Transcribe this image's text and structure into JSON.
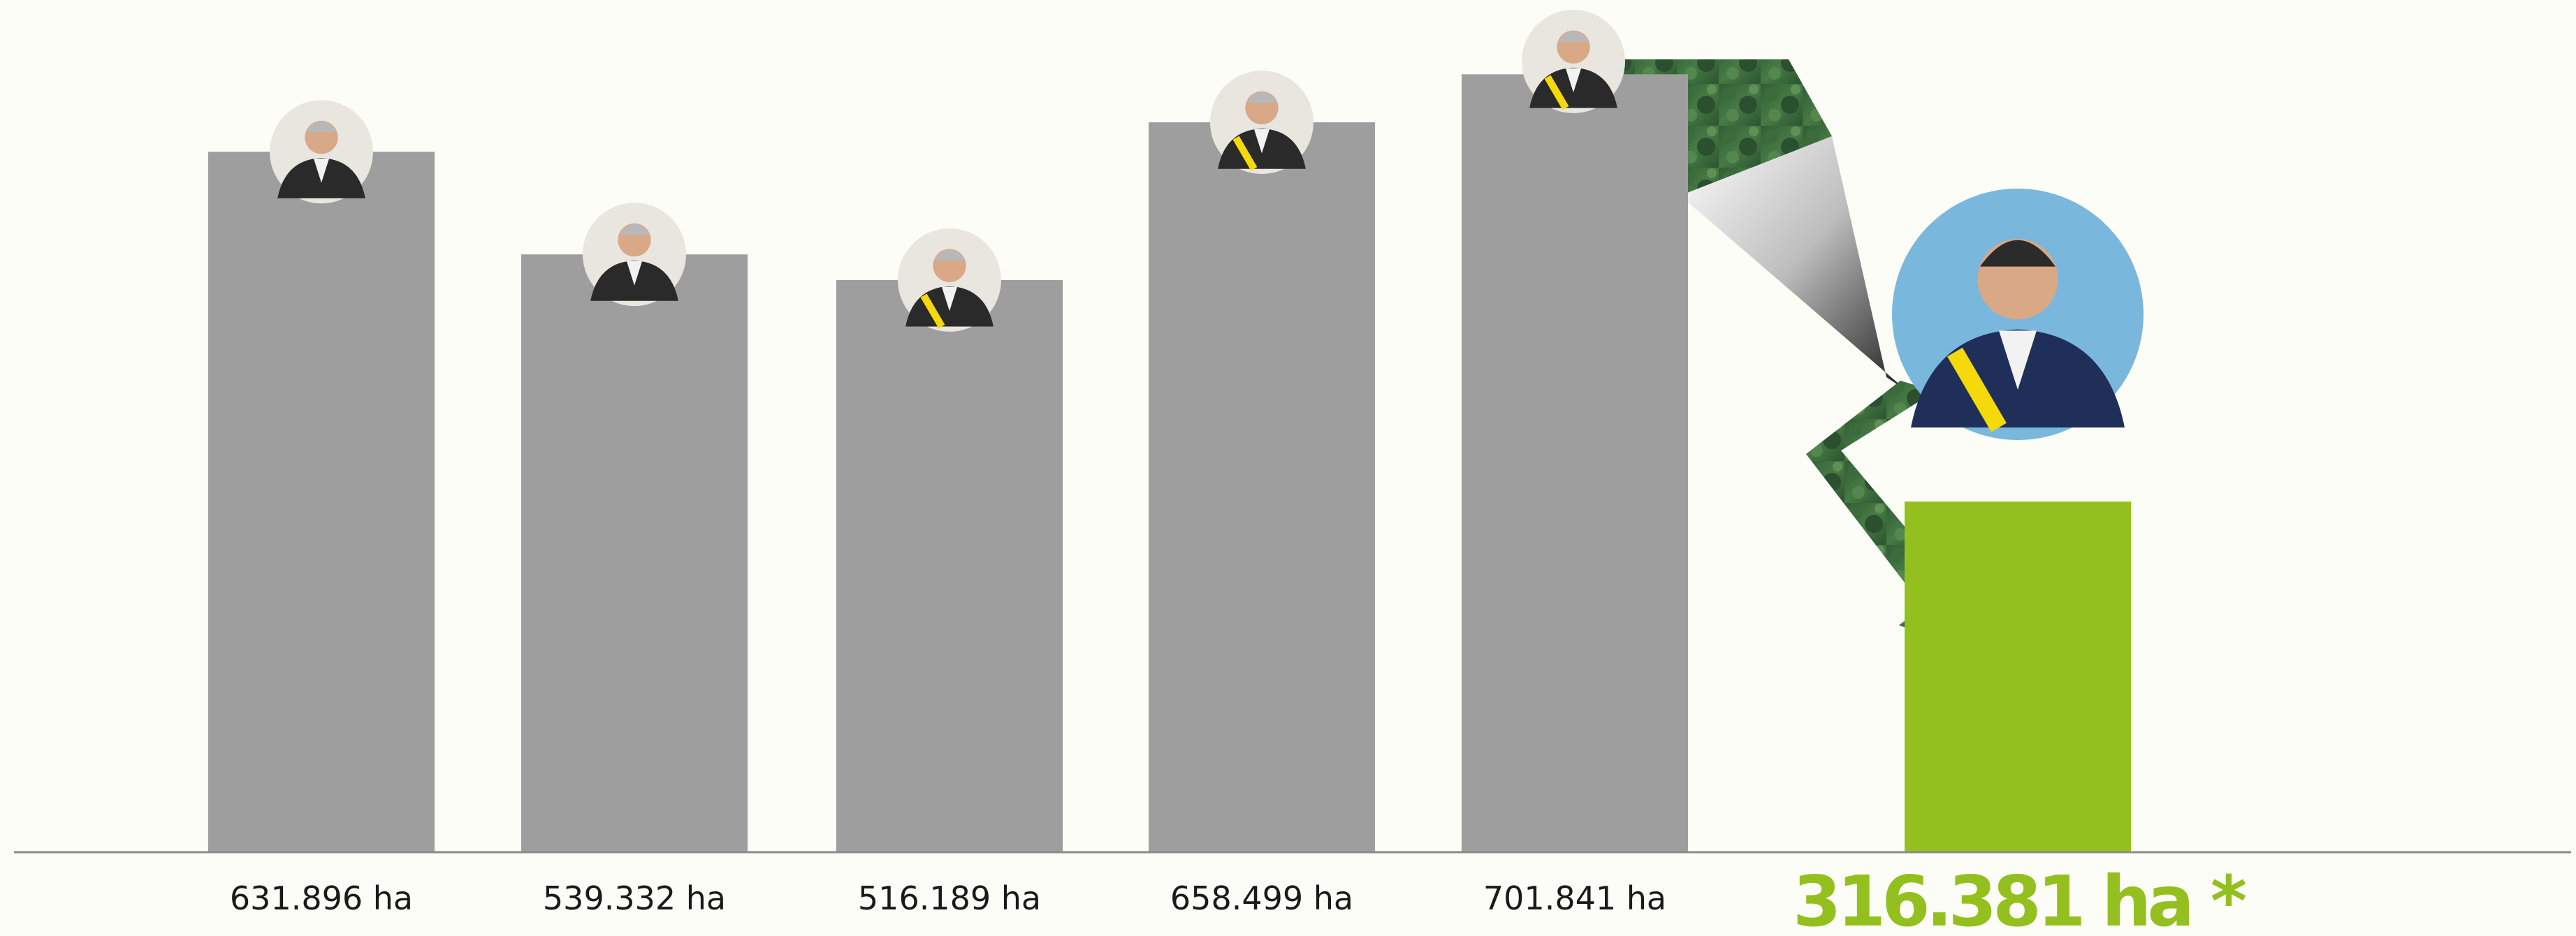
{
  "chart_data": {
    "type": "bar",
    "categories": [
      "",
      "",
      "",
      "",
      "",
      ""
    ],
    "values": [
      631896,
      539332,
      516189,
      658499,
      701841,
      316381
    ],
    "value_labels": [
      "631.896 ha",
      "539.332 ha",
      "516.189 ha",
      "658.499 ha",
      "701.841 ha",
      "316.381 ha *"
    ],
    "unit": "ha",
    "title": "",
    "xlabel": "",
    "ylabel": "",
    "ylim": [
      0,
      760000
    ],
    "grid": false,
    "legend": "none",
    "highlight_index": 5,
    "colors": {
      "bar": "#9e9e9e",
      "highlight": "#93c01f",
      "background": "#fdfdf7",
      "axis": "#888888",
      "label": "#1a1a1a"
    },
    "portrait_icons": [
      "portrait-photo",
      "portrait-photo",
      "portrait-photo",
      "portrait-photo",
      "portrait-photo",
      "portrait-photo"
    ],
    "decoration": "forest-photo-down-arrow"
  }
}
